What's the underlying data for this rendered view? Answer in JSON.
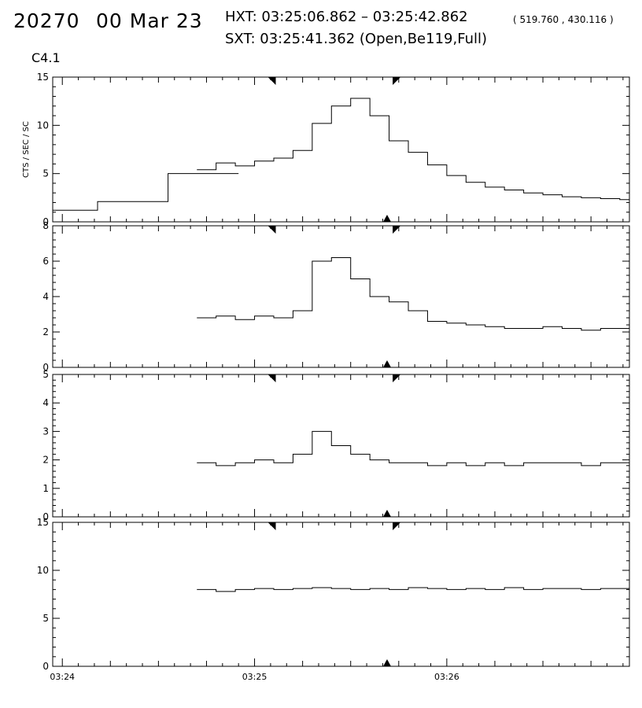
{
  "header": {
    "event_id": "20270",
    "date": "00 Mar 23",
    "hxt": "HXT: 03:25:06.862 – 03:25:42.862",
    "hxt_coords": "( 519.760 , 430.116 )",
    "sxt": "SXT: 03:25:41.362 (Open,Be119,Full)",
    "flare_class": "C4.1"
  },
  "chart_data": {
    "type": "line",
    "step": true,
    "title": "",
    "xlabel": "",
    "x_ticks": [
      "03:24",
      "03:25",
      "03:26"
    ],
    "x_range_seconds_after_0324": [
      -3,
      177
    ],
    "markers": {
      "hxt_start": "03:25:06.862",
      "hxt_end": "03:25:42.862",
      "sxt": "03:25:41.362"
    },
    "color": "#000000",
    "panels": [
      {
        "ylabel": "CTS / SEC / SC",
        "ylim": [
          0,
          15
        ],
        "y_ticks": [
          "0",
          "5",
          "10",
          "15"
        ],
        "series": [
          {
            "t": [
              -3,
              11,
              33
            ],
            "v": [
              1.2,
              2.1,
              5.0
            ]
          },
          {
            "t": [
              42,
              48,
              54,
              60,
              66,
              72,
              78,
              84,
              90,
              96,
              102,
              108,
              114,
              120,
              126,
              132,
              138,
              144,
              150,
              156,
              162,
              168,
              174,
              177
            ],
            "v": [
              5.4,
              6.1,
              5.8,
              6.3,
              6.6,
              7.4,
              10.2,
              12.0,
              12.8,
              11.0,
              8.4,
              7.2,
              5.9,
              4.8,
              4.1,
              3.6,
              3.3,
              3.0,
              2.8,
              2.6,
              2.5,
              2.4,
              2.3,
              2.2
            ]
          }
        ]
      },
      {
        "ylabel": "",
        "ylim": [
          0,
          8
        ],
        "y_ticks": [
          "0",
          "2",
          "4",
          "6",
          "8"
        ],
        "series": [
          {
            "t": [
              42,
              48,
              54,
              60,
              66,
              72,
              78,
              84,
              90,
              96,
              102,
              108,
              114,
              120,
              126,
              132,
              138,
              144,
              150,
              156,
              162,
              168,
              174,
              177
            ],
            "v": [
              2.8,
              2.9,
              2.7,
              2.9,
              2.8,
              3.2,
              6.0,
              6.2,
              5.0,
              4.0,
              3.7,
              3.2,
              2.6,
              2.5,
              2.4,
              2.3,
              2.2,
              2.2,
              2.3,
              2.2,
              2.1,
              2.2,
              2.2,
              2.1
            ]
          }
        ]
      },
      {
        "ylabel": "",
        "ylim": [
          0,
          5
        ],
        "y_ticks": [
          "0",
          "1",
          "2",
          "3",
          "4",
          "5"
        ],
        "series": [
          {
            "t": [
              42,
              48,
              54,
              60,
              66,
              72,
              78,
              84,
              90,
              96,
              102,
              108,
              114,
              120,
              126,
              132,
              138,
              144,
              150,
              156,
              162,
              168,
              174,
              177
            ],
            "v": [
              1.9,
              1.8,
              1.9,
              2.0,
              1.9,
              2.2,
              3.0,
              2.5,
              2.2,
              2.0,
              1.9,
              1.9,
              1.8,
              1.9,
              1.8,
              1.9,
              1.8,
              1.9,
              1.9,
              1.9,
              1.8,
              1.9,
              1.9,
              1.9
            ]
          }
        ]
      },
      {
        "ylabel": "",
        "ylim": [
          0,
          15
        ],
        "y_ticks": [
          "0",
          "5",
          "10",
          "15"
        ],
        "series": [
          {
            "t": [
              42,
              48,
              54,
              60,
              66,
              72,
              78,
              84,
              90,
              96,
              102,
              108,
              114,
              120,
              126,
              132,
              138,
              144,
              150,
              156,
              162,
              168,
              174,
              177
            ],
            "v": [
              8.0,
              7.8,
              8.0,
              8.1,
              8.0,
              8.1,
              8.2,
              8.1,
              8.0,
              8.1,
              8.0,
              8.2,
              8.1,
              8.0,
              8.1,
              8.0,
              8.2,
              8.0,
              8.1,
              8.1,
              8.0,
              8.1,
              8.1,
              8.0
            ]
          }
        ]
      }
    ]
  }
}
